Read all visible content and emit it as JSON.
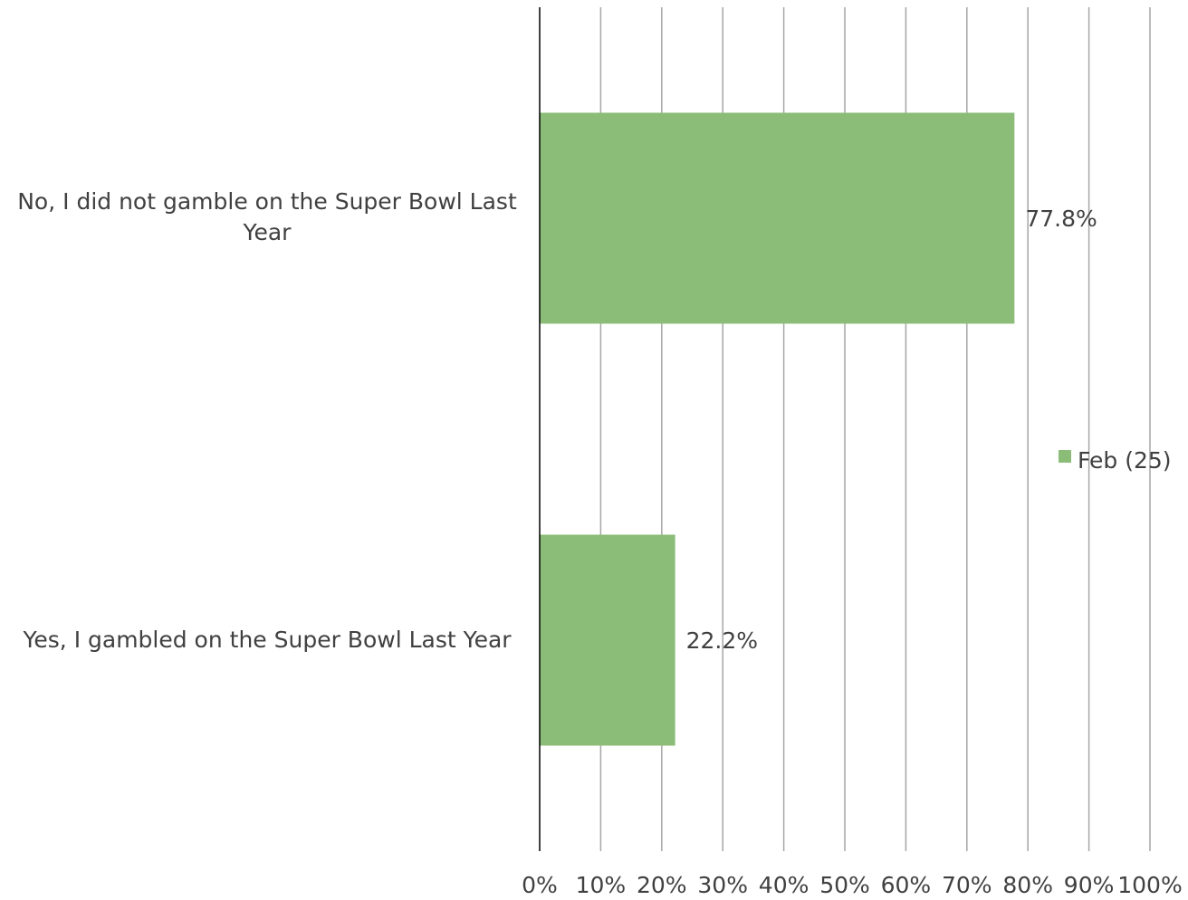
{
  "chart_data": {
    "type": "bar",
    "orientation": "horizontal",
    "categories": [
      "No, I did not gamble on the Super Bowl Last Year",
      "Yes, I gambled on the Super Bowl Last Year"
    ],
    "series": [
      {
        "name": "Feb (25)",
        "values": [
          77.8,
          22.2
        ],
        "data_labels": [
          "77.8%",
          "22.2%"
        ],
        "color": "#8cbd78"
      }
    ],
    "title": "",
    "xlabel": "",
    "ylabel": "",
    "xlim": [
      0,
      100
    ],
    "x_ticks": [
      "0%",
      "10%",
      "20%",
      "30%",
      "40%",
      "50%",
      "60%",
      "70%",
      "80%",
      "90%",
      "100%"
    ],
    "grid": true,
    "legend_position": "right"
  }
}
